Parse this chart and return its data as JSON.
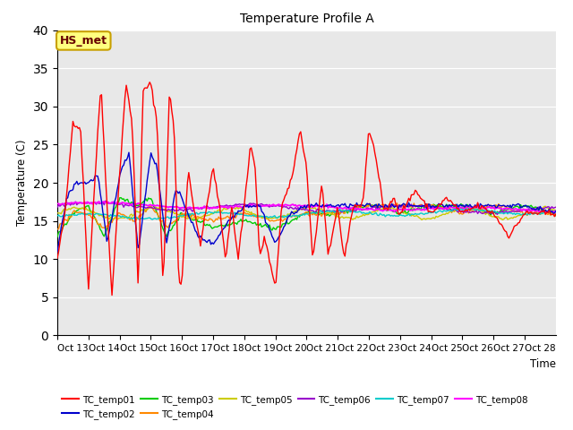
{
  "title": "Temperature Profile A",
  "xlabel": "Time",
  "ylabel": "Temperature (C)",
  "ylim": [
    0,
    40
  ],
  "yticks": [
    0,
    5,
    10,
    15,
    20,
    25,
    30,
    35,
    40
  ],
  "background_color": "#e8e8e8",
  "legend_box_edge_color": "#c8a000",
  "legend_box_bg": "#ffff80",
  "series_colors": {
    "TC_temp01": "#ff0000",
    "TC_temp02": "#0000cc",
    "TC_temp03": "#00cc00",
    "TC_temp04": "#ff8800",
    "TC_temp05": "#cccc00",
    "TC_temp06": "#9900cc",
    "TC_temp07": "#00cccc",
    "TC_temp08": "#ff00ff"
  },
  "annotation": "HS_met",
  "x_tick_labels": [
    "Oct 13",
    "Oct 14",
    "Oct 15",
    "Oct 16",
    "Oct 17",
    "Oct 18",
    "Oct 19",
    "Oct 20",
    "Oct 21",
    "Oct 22",
    "Oct 23",
    "Oct 24",
    "Oct 25",
    "Oct 26",
    "Oct 27",
    "Oct 28"
  ],
  "fig_width": 6.4,
  "fig_height": 4.8,
  "dpi": 100
}
